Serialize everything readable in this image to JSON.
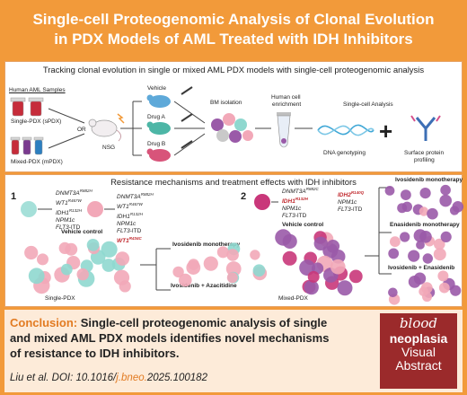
{
  "title": {
    "line1": "Single-cell Proteogenomic Analysis of Clonal Evolution",
    "line2": "in PDX Models of AML Treated with IDH Inhibitors"
  },
  "top_panel": {
    "heading": "Tracking clonal evolution in single or mixed AML PDX models with single-cell proteogenomic analysis",
    "samples_label": "Human AML Samples",
    "single_pdx": "Single-PDX (sPDX)",
    "mixed_pdx": "Mixed-PDX (mPDX)",
    "or": "OR",
    "nsg": "NSG",
    "vehicle": "Vehicle",
    "drug_a": "Drug A",
    "drug_b": "Drug B",
    "bm_isolation": "BM isolation",
    "human_cell_enrichment_1": "Human cell",
    "human_cell_enrichment_2": "enrichment",
    "single_cell_analysis": "Single-cell Analysis",
    "dna_genotyping": "DNA genotyping",
    "surface_protein_1": "Surface protein",
    "surface_protein_2": "profiling",
    "plus": "+"
  },
  "mid_panel": {
    "heading": "Resistance mechanisms and treatment effects with IDH inhibitors",
    "num1": "1",
    "num2": "2",
    "vehicle_control_1": "Vehicle control",
    "vehicle_control_2": "Vehicle control",
    "single_pdx": "Single-PDX",
    "mixed_pdx": "Mixed-PDX",
    "ivo_mono_1": "Ivosidenib monotherapy",
    "ivo_aza": "Ivosidenib + Azacitidine",
    "ivo_mono_2": "Ivosidenib monotherapy",
    "ena_mono": "Enasidenib monotherapy",
    "ivo_ena": "Ivosidenib + Enasidenib",
    "genes_a": [
      {
        "name": "DNMT3A",
        "sup": "R882H"
      },
      {
        "name": "WT1",
        "sup": "R467W"
      },
      {
        "name": "IDH1",
        "sup": "R132H"
      },
      {
        "name": "NPM1c",
        "sup": ""
      },
      {
        "name": "FLT3",
        "sup": "",
        "suffix": "-ITD"
      }
    ],
    "genes_b": [
      {
        "name": "DNMT3A",
        "sup": "R882H"
      },
      {
        "name": "WT1",
        "sup": "R467W"
      },
      {
        "name": "IDH1",
        "sup": "R132H"
      },
      {
        "name": "NPM1c",
        "sup": ""
      },
      {
        "name": "FLT3",
        "sup": "",
        "suffix": "-ITD"
      },
      {
        "name": "WT1",
        "sup": "R434C",
        "red": true
      }
    ],
    "genes_c": [
      {
        "name": "DNMT3A",
        "sup": "R882C"
      },
      {
        "name": "IDH1",
        "sup": "R132H",
        "red": true
      },
      {
        "name": "NPM1c",
        "sup": ""
      },
      {
        "name": "FLT3",
        "sup": "",
        "suffix": "-ITD"
      }
    ],
    "genes_d": [
      {
        "name": "IDH2",
        "sup": "R140Q",
        "red": true
      },
      {
        "name": "NPM1c",
        "sup": ""
      },
      {
        "name": "FLT3",
        "sup": "",
        "suffix": "-ITD"
      }
    ]
  },
  "conclusion": {
    "label": "Conclusion:",
    "line1_rest": " Single-cell proteogenomic analysis of single",
    "line2": "and mixed AML PDX models identifies novel mechanisms",
    "line3": "of resistance to IDH inhibitors."
  },
  "citation": {
    "prefix": "Liu et al. DOI: 10.1016/",
    "highlight": "j.bneo.",
    "suffix": "2025.100182"
  },
  "logo": {
    "line1": "blood",
    "line2": "neoplasia",
    "line3": "Visual",
    "line4": "Abstract"
  },
  "colors": {
    "frame": "#f29a3a",
    "accent": "#e27b22",
    "logo": "#9b2a2b",
    "mutation_red": "#c0282d",
    "cell_pink": "#f2a8b8",
    "cell_purple": "#9a5aa8",
    "cell_teal": "#8fd8cf"
  }
}
